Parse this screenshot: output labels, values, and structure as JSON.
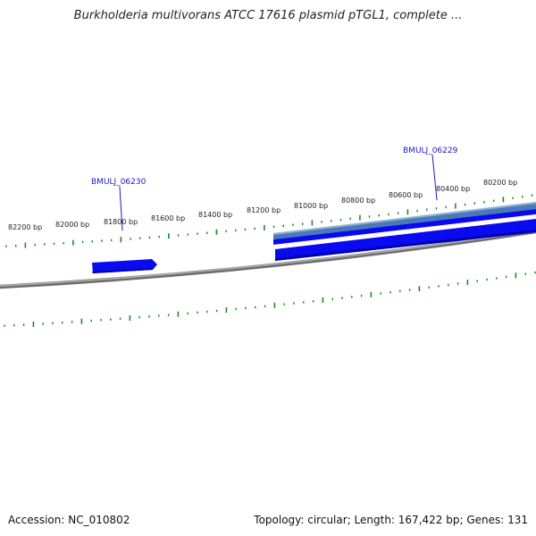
{
  "title": "Burkholderia multivorans ATCC 17616 plasmid pTGL1, complete ...",
  "footer": {
    "accession": "Accession: NC_010802",
    "summary": "Topology: circular; Length: 167,422 bp; Genes: 131"
  },
  "map": {
    "tick_labels": [
      "82200 bp",
      "82000 bp",
      "81800 bp",
      "81600 bp",
      "81400 bp",
      "81200 bp",
      "81000 bp",
      "80800 bp",
      "80600 bp",
      "80400 bp",
      "80200 bp"
    ],
    "gene_labels": [
      "BMULJ_06230",
      "BMULJ_06229"
    ]
  },
  "colors": {
    "gene": "#0a0af0",
    "gene_dark": "#0000c0",
    "gene_steel": "#4a7ab5",
    "ticks": "#1e8a1e",
    "backbone": "#8a8a8a",
    "label": "#1a1acc"
  }
}
